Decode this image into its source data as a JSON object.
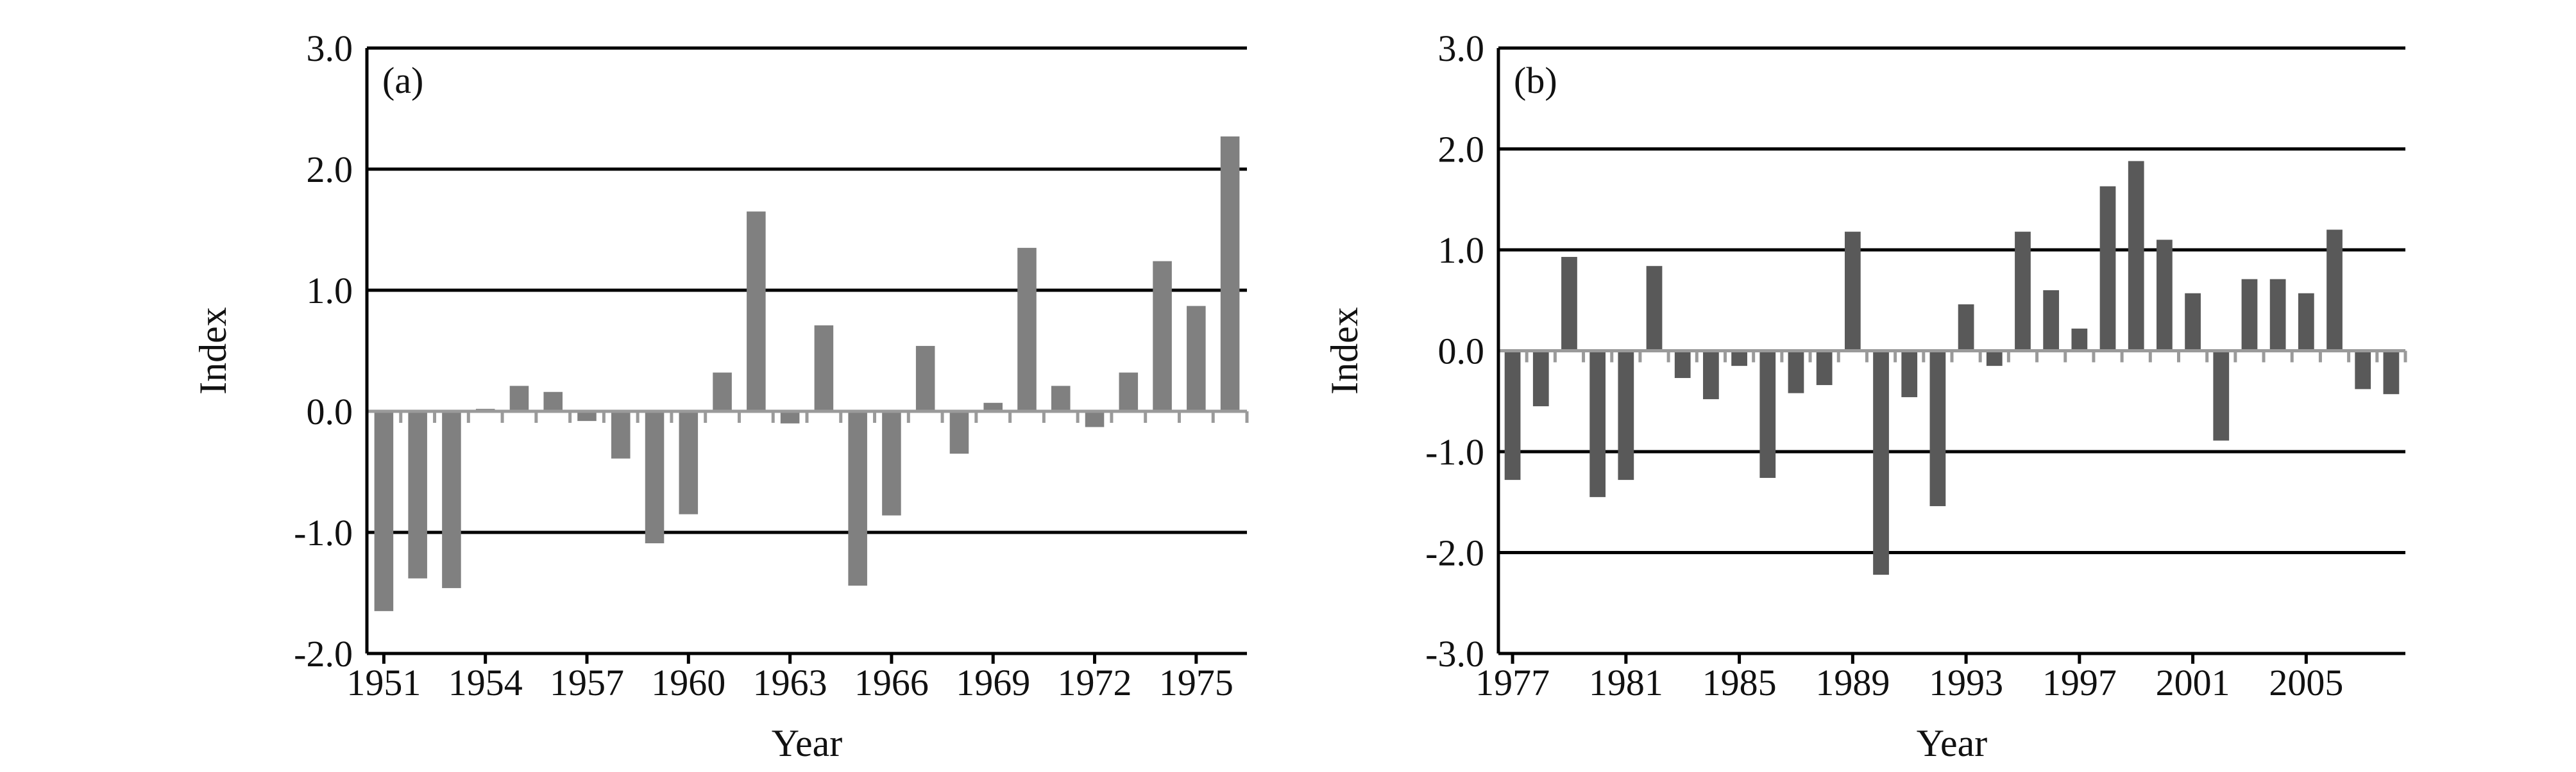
{
  "colors": {
    "bar_a": "#808080",
    "bar_b": "#595959",
    "gridline": "#000000",
    "zero_line": "#9a9a9a",
    "text": "#111111"
  },
  "chart_data": [
    {
      "type": "bar",
      "panel_label": "(a)",
      "xlabel": "Year",
      "ylabel": "Index",
      "ylim": [
        -2.0,
        3.0
      ],
      "yticks": [
        "3.0",
        "2.0",
        "1.0",
        "0.0",
        "-1.0",
        "-2.0"
      ],
      "grid": "horizontal",
      "xtick_labels": [
        "1951",
        "1954",
        "1957",
        "1960",
        "1963",
        "1966",
        "1969",
        "1972",
        "1975"
      ],
      "x": [
        1951,
        1952,
        1953,
        1954,
        1955,
        1956,
        1957,
        1958,
        1959,
        1960,
        1961,
        1962,
        1963,
        1964,
        1965,
        1966,
        1967,
        1968,
        1969,
        1970,
        1971,
        1972,
        1973,
        1974,
        1975,
        1976
      ],
      "values": [
        -1.65,
        -1.38,
        -1.46,
        0.02,
        0.21,
        0.16,
        -0.08,
        -0.39,
        -1.09,
        -0.85,
        0.32,
        1.65,
        -0.1,
        0.71,
        -1.44,
        -0.86,
        0.54,
        -0.35,
        0.07,
        1.35,
        0.21,
        -0.13,
        0.32,
        1.24,
        0.87,
        2.27
      ]
    },
    {
      "type": "bar",
      "panel_label": "(b)",
      "xlabel": "Year",
      "ylabel": "Index",
      "ylim": [
        -3.0,
        3.0
      ],
      "yticks": [
        "3.0",
        "2.0",
        "1.0",
        "0.0",
        "-1.0",
        "-2.0",
        "-3.0"
      ],
      "grid": "horizontal",
      "xtick_labels": [
        "1977",
        "1981",
        "1985",
        "1989",
        "1993",
        "1997",
        "2001",
        "2005"
      ],
      "x": [
        1977,
        1978,
        1979,
        1980,
        1981,
        1982,
        1983,
        1984,
        1985,
        1986,
        1987,
        1988,
        1989,
        1990,
        1991,
        1992,
        1993,
        1994,
        1995,
        1996,
        1997,
        1998,
        1999,
        2000,
        2001,
        2002,
        2003,
        2004,
        2005,
        2006,
        2007,
        2008
      ],
      "values": [
        -1.28,
        -0.55,
        0.93,
        -1.45,
        -1.28,
        0.84,
        -0.27,
        -0.48,
        -0.15,
        -1.26,
        -0.42,
        -0.34,
        1.18,
        -2.22,
        -0.46,
        -1.54,
        0.46,
        -0.15,
        1.18,
        0.6,
        0.22,
        1.63,
        1.88,
        1.1,
        0.57,
        -0.89,
        0.71,
        0.71,
        0.57,
        1.2,
        -0.38,
        -0.43
      ]
    }
  ]
}
